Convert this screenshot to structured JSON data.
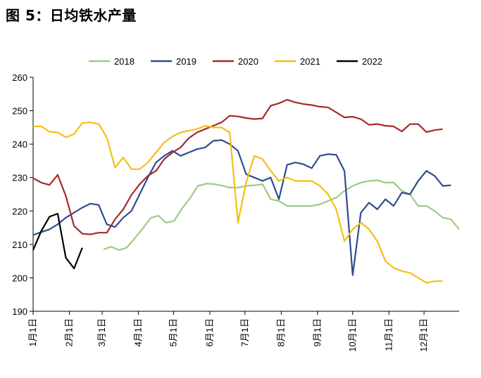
{
  "figure_title": "图 5：日均铁水产量",
  "chart_data": {
    "type": "line",
    "title": "",
    "xlabel": "",
    "ylabel": "",
    "ylim": [
      190,
      260
    ],
    "yticks": [
      190,
      200,
      210,
      220,
      230,
      240,
      250,
      260
    ],
    "x_unit": "week of year",
    "xlim": [
      0,
      52
    ],
    "xtick_labels": [
      "1月1日",
      "2月1日",
      "3月1日",
      "4月1日",
      "5月1日",
      "6月1日",
      "7月1日",
      "8月1日",
      "9月1日",
      "10月1日",
      "11月1日",
      "12月1日"
    ],
    "xtick_positions": [
      0,
      4.43,
      8.43,
      12.86,
      17.14,
      21.57,
      25.86,
      30.29,
      34.71,
      39,
      43.43,
      47.71
    ],
    "grid": false,
    "legend_position": "top",
    "series": [
      {
        "name": "2018",
        "color": "#9dcb83",
        "points": [
          [
            8.6,
            208.5
          ],
          [
            9.5,
            209.3
          ],
          [
            10.5,
            208.3
          ],
          [
            11.4,
            209.0
          ],
          [
            12.3,
            211.5
          ],
          [
            13.3,
            214.5
          ],
          [
            14.4,
            218.0
          ],
          [
            15.3,
            218.6
          ],
          [
            16.2,
            216.5
          ],
          [
            17.2,
            217.0
          ],
          [
            18.1,
            220.5
          ],
          [
            19.2,
            224.0
          ],
          [
            20.1,
            227.5
          ],
          [
            21.2,
            228.2
          ],
          [
            22.2,
            228.0
          ],
          [
            23.2,
            227.5
          ],
          [
            24.0,
            227.0
          ],
          [
            25.0,
            227.0
          ],
          [
            26.0,
            227.5
          ],
          [
            27.0,
            227.7
          ],
          [
            28.0,
            228.0
          ],
          [
            29.0,
            223.5
          ],
          [
            30.0,
            223.0
          ],
          [
            31.0,
            221.5
          ],
          [
            32.0,
            221.5
          ],
          [
            33.0,
            221.5
          ],
          [
            34.0,
            221.5
          ],
          [
            35.0,
            222.0
          ],
          [
            36.0,
            223.0
          ],
          [
            37.0,
            224.0
          ],
          [
            38.0,
            226.0
          ],
          [
            39.0,
            227.5
          ],
          [
            40.0,
            228.5
          ],
          [
            41.0,
            229.0
          ],
          [
            42.0,
            229.2
          ],
          [
            43.0,
            228.5
          ],
          [
            44.0,
            228.5
          ],
          [
            45.0,
            226.0
          ],
          [
            46.0,
            225.0
          ],
          [
            47.0,
            221.5
          ],
          [
            48.0,
            221.5
          ],
          [
            49.0,
            220.0
          ],
          [
            50.0,
            218.0
          ],
          [
            51.0,
            217.5
          ],
          [
            52.0,
            214.5
          ]
        ]
      },
      {
        "name": "2019",
        "color": "#2e4c8f",
        "points": [
          [
            0,
            212.8
          ],
          [
            1,
            213.7
          ],
          [
            2,
            214.5
          ],
          [
            3,
            216.0
          ],
          [
            4,
            218.0
          ],
          [
            5,
            219.5
          ],
          [
            6,
            221.0
          ],
          [
            7,
            222.2
          ],
          [
            8,
            221.8
          ],
          [
            9,
            216.0
          ],
          [
            10,
            215.2
          ],
          [
            11,
            218.0
          ],
          [
            12,
            220.0
          ],
          [
            13,
            225.0
          ],
          [
            14,
            230.0
          ],
          [
            15,
            234.5
          ],
          [
            16,
            236.5
          ],
          [
            17,
            238.0
          ],
          [
            18,
            236.5
          ],
          [
            19,
            237.5
          ],
          [
            20,
            238.5
          ],
          [
            21,
            239.0
          ],
          [
            22,
            241.0
          ],
          [
            23,
            241.2
          ],
          [
            24,
            240.0
          ],
          [
            25,
            238.0
          ],
          [
            26,
            231.0
          ],
          [
            27,
            230.0
          ],
          [
            28,
            229.0
          ],
          [
            29,
            230.0
          ],
          [
            30,
            223.5
          ],
          [
            31,
            233.8
          ],
          [
            32,
            234.5
          ],
          [
            33,
            234.0
          ],
          [
            34,
            232.8
          ],
          [
            35,
            236.5
          ],
          [
            36,
            237.0
          ],
          [
            37,
            236.8
          ],
          [
            38,
            232.0
          ],
          [
            39,
            200.8
          ],
          [
            40,
            219.5
          ],
          [
            41,
            222.5
          ],
          [
            42,
            220.5
          ],
          [
            43,
            223.5
          ],
          [
            44,
            221.5
          ],
          [
            45,
            225.5
          ],
          [
            46,
            225.0
          ],
          [
            47,
            229.0
          ],
          [
            48,
            232.0
          ],
          [
            49,
            230.5
          ],
          [
            50,
            227.5
          ],
          [
            51,
            227.7
          ]
        ]
      },
      {
        "name": "2020",
        "color": "#a52a2a",
        "points": [
          [
            0,
            229.8
          ],
          [
            1,
            228.5
          ],
          [
            2,
            227.8
          ],
          [
            3,
            230.8
          ],
          [
            4,
            224.5
          ],
          [
            5,
            215.5
          ],
          [
            6,
            213.2
          ],
          [
            7,
            213.0
          ],
          [
            8,
            213.5
          ],
          [
            9,
            213.5
          ],
          [
            10,
            217.5
          ],
          [
            11,
            220.5
          ],
          [
            12,
            224.8
          ],
          [
            13,
            228.0
          ],
          [
            14,
            230.5
          ],
          [
            15,
            232.0
          ],
          [
            16,
            235.5
          ],
          [
            17,
            237.5
          ],
          [
            18,
            239.0
          ],
          [
            19,
            241.8
          ],
          [
            20,
            243.5
          ],
          [
            21,
            244.5
          ],
          [
            22,
            245.5
          ],
          [
            23,
            246.5
          ],
          [
            24,
            248.5
          ],
          [
            25,
            248.3
          ],
          [
            26,
            247.8
          ],
          [
            27,
            247.5
          ],
          [
            28,
            247.7
          ],
          [
            29,
            251.5
          ],
          [
            30,
            252.2
          ],
          [
            31,
            253.3
          ],
          [
            32,
            252.5
          ],
          [
            33,
            252.0
          ],
          [
            34,
            251.7
          ],
          [
            35,
            251.2
          ],
          [
            36,
            251.0
          ],
          [
            37,
            249.5
          ],
          [
            38,
            248.0
          ],
          [
            39,
            248.2
          ],
          [
            40,
            247.5
          ],
          [
            41,
            245.8
          ],
          [
            42,
            246.0
          ],
          [
            43,
            245.5
          ],
          [
            44,
            245.3
          ],
          [
            45,
            243.8
          ],
          [
            46,
            246.0
          ],
          [
            47,
            246.0
          ],
          [
            48,
            243.6
          ],
          [
            49,
            244.2
          ],
          [
            50,
            244.5
          ]
        ]
      },
      {
        "name": "2021",
        "color": "#f5be17",
        "points": [
          [
            0,
            245.3
          ],
          [
            1,
            245.3
          ],
          [
            2,
            243.7
          ],
          [
            3,
            243.5
          ],
          [
            4,
            242.0
          ],
          [
            5,
            243.0
          ],
          [
            6,
            246.3
          ],
          [
            7,
            246.5
          ],
          [
            8,
            246.0
          ],
          [
            9,
            242.0
          ],
          [
            10,
            233.0
          ],
          [
            11,
            236.0
          ],
          [
            12,
            232.5
          ],
          [
            13,
            232.5
          ],
          [
            14,
            234.5
          ],
          [
            15,
            237.5
          ],
          [
            16,
            240.5
          ],
          [
            17,
            242.3
          ],
          [
            18,
            243.5
          ],
          [
            19,
            244.0
          ],
          [
            20,
            244.5
          ],
          [
            21,
            245.5
          ],
          [
            22,
            245.0
          ],
          [
            23,
            245.0
          ],
          [
            24,
            243.5
          ],
          [
            25,
            216.5
          ],
          [
            26,
            228.5
          ],
          [
            27,
            236.5
          ],
          [
            28,
            235.5
          ],
          [
            29,
            232.0
          ],
          [
            30,
            229.0
          ],
          [
            31,
            230.0
          ],
          [
            32,
            229.0
          ],
          [
            33,
            229.0
          ],
          [
            34,
            229.0
          ],
          [
            35,
            227.5
          ],
          [
            36,
            225.0
          ],
          [
            37,
            220.5
          ],
          [
            38,
            211.0
          ],
          [
            39,
            214.5
          ],
          [
            40,
            216.5
          ],
          [
            41,
            214.5
          ],
          [
            42,
            211.0
          ],
          [
            43,
            205.0
          ],
          [
            44,
            203.0
          ],
          [
            45,
            202.0
          ],
          [
            46,
            201.5
          ],
          [
            47,
            200.0
          ],
          [
            48,
            198.5
          ],
          [
            49,
            199.0
          ],
          [
            50,
            199.0
          ]
        ]
      },
      {
        "name": "2022",
        "color": "#000000",
        "points": [
          [
            0,
            208.3
          ],
          [
            1,
            214.0
          ],
          [
            2,
            218.3
          ],
          [
            3,
            219.2
          ],
          [
            4,
            206.0
          ],
          [
            5,
            202.8
          ],
          [
            6,
            209.0
          ]
        ]
      }
    ]
  }
}
